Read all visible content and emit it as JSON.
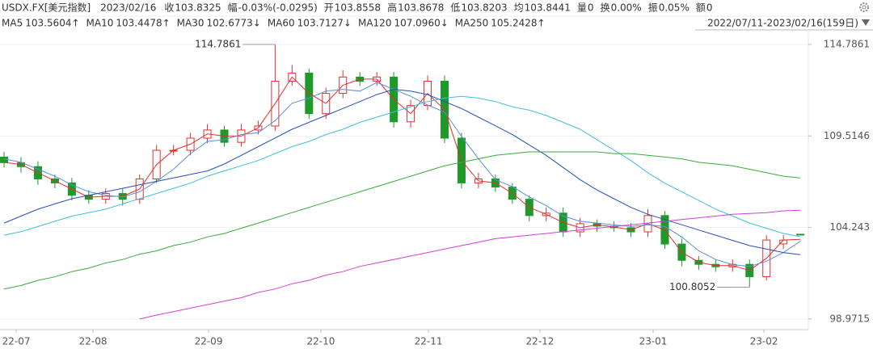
{
  "header": {
    "symbol": "USDX.FX[美元指数]",
    "date": "2023/02/16",
    "quote": [
      {
        "label": "收",
        "value": "103.8325"
      },
      {
        "label": "幅",
        "value": "-0.03%(-0.0295)"
      },
      {
        "label": "开",
        "value": "103.8558"
      },
      {
        "label": "高",
        "value": "103.8678"
      },
      {
        "label": "低",
        "value": "103.8203"
      },
      {
        "label": "均",
        "value": "103.8441"
      },
      {
        "label": "量",
        "value": "0"
      },
      {
        "label": "换",
        "value": "0.00%"
      },
      {
        "label": "振",
        "value": "0.05%"
      },
      {
        "label": "额",
        "value": "0"
      }
    ],
    "range": "2022/07/11-2023/02/16(159日)"
  },
  "chart_data": {
    "type": "candlestick",
    "up_color": "#e2302f",
    "down_color": "#1f9a2a",
    "xlim": [
      -0.24,
      47.47
    ],
    "ylim": [
      98.36,
      115.58
    ],
    "yticks": [
      114.7861,
      109.5146,
      104.243,
      98.9715
    ],
    "grid": true,
    "xticks": [
      {
        "value": 0.72,
        "label": "22-07"
      },
      {
        "value": 5.25,
        "label": "22-08"
      },
      {
        "value": 12.07,
        "label": "22-09"
      },
      {
        "value": 18.7,
        "label": "22-10"
      },
      {
        "value": 25.05,
        "label": "22-11"
      },
      {
        "value": 31.63,
        "label": "22-12"
      },
      {
        "value": 38.31,
        "label": "23-01"
      },
      {
        "value": 44.85,
        "label": "23-02"
      }
    ],
    "open": [
      108.3,
      107.98,
      107.75,
      107.04,
      106.81,
      106.1,
      105.87,
      106.2,
      105.87,
      107.04,
      108.69,
      108.69,
      109.39,
      109.86,
      109.15,
      109.86,
      110.09,
      112.67,
      113.14,
      110.8,
      111.97,
      112.91,
      112.67,
      112.91,
      110.33,
      111.27,
      112.67,
      109.39,
      106.81,
      107.04,
      106.57,
      105.87,
      104.93,
      105.07,
      103.99,
      104.46,
      104.32,
      104.23,
      103.99,
      104.93,
      103.29,
      102.35,
      102.12,
      101.98,
      102.12,
      101.41,
      103.3,
      103.8558
    ],
    "high": [
      108.6,
      108.3,
      108.05,
      107.3,
      107.1,
      106.4,
      106.5,
      106.5,
      107.3,
      109.0,
      109.0,
      109.7,
      110.2,
      110.1,
      110.2,
      110.4,
      114.7861,
      113.6,
      113.4,
      112.3,
      113.3,
      113.2,
      113.2,
      113.2,
      111.6,
      113.0,
      113.0,
      109.7,
      107.4,
      107.3,
      106.8,
      106.1,
      105.4,
      105.4,
      104.8,
      104.7,
      104.6,
      104.5,
      105.3,
      105.2,
      103.6,
      102.6,
      102.4,
      102.4,
      102.4,
      103.8,
      103.8,
      103.8678
    ],
    "low": [
      107.7,
      107.4,
      106.7,
      106.5,
      105.8,
      105.6,
      105.6,
      105.5,
      105.6,
      106.8,
      108.4,
      108.4,
      109.1,
      108.9,
      108.9,
      109.6,
      109.8,
      112.4,
      110.5,
      110.5,
      111.7,
      112.4,
      112.4,
      110.0,
      110.0,
      111.0,
      109.1,
      106.5,
      106.5,
      106.3,
      105.6,
      104.6,
      104.6,
      103.7,
      103.7,
      104.0,
      104.0,
      103.7,
      103.7,
      103.0,
      102.0,
      101.8,
      101.7,
      101.7,
      100.8052,
      101.2,
      103.0,
      103.8203
    ],
    "close": [
      107.98,
      107.75,
      107.04,
      106.81,
      106.1,
      105.87,
      106.2,
      105.87,
      107.04,
      108.69,
      108.69,
      109.39,
      109.86,
      109.15,
      109.86,
      110.09,
      112.67,
      113.14,
      110.8,
      111.97,
      112.91,
      112.67,
      112.91,
      110.33,
      111.27,
      112.67,
      109.39,
      106.81,
      107.04,
      106.57,
      105.87,
      104.93,
      105.07,
      103.99,
      104.46,
      104.32,
      104.23,
      103.99,
      104.93,
      103.29,
      102.35,
      102.12,
      101.98,
      102.12,
      101.41,
      103.52,
      103.52,
      103.8325
    ],
    "annotations": [
      {
        "text": "114.7861",
        "index": 16,
        "value": 114.7861,
        "color": "#e2302f"
      },
      {
        "text": "100.8052",
        "index": 44,
        "value": 100.8052,
        "color": "#1f9a2a"
      }
    ],
    "series": [
      {
        "name": "MA5",
        "label": "103.5604↑",
        "color": "#e2302f",
        "values": [
          108.0,
          107.87,
          107.4,
          106.93,
          106.46,
          105.99,
          106.04,
          106.04,
          106.46,
          107.87,
          108.69,
          109.04,
          109.63,
          109.51,
          109.51,
          109.98,
          111.38,
          112.91,
          111.97,
          111.39,
          112.44,
          112.79,
          112.79,
          111.62,
          110.8,
          111.97,
          111.03,
          108.1,
          106.93,
          106.81,
          106.22,
          105.4,
          105.0,
          104.53,
          104.23,
          104.39,
          104.28,
          104.11,
          104.46,
          104.11,
          102.82,
          102.24,
          102.05,
          102.05,
          101.77,
          102.47,
          103.52,
          103.56
        ]
      },
      {
        "name": "MA10",
        "label": "103.4478↑",
        "color": "#5a8fd8",
        "values": [
          108.2,
          108.0,
          107.6,
          107.2,
          106.7,
          106.3,
          106.1,
          106.0,
          106.3,
          106.9,
          107.6,
          108.5,
          109.2,
          109.3,
          109.6,
          109.7,
          110.4,
          111.4,
          111.7,
          112.1,
          112.2,
          112.1,
          112.6,
          112.2,
          111.8,
          111.3,
          110.9,
          109.5,
          108.2,
          107.0,
          106.6,
          106.0,
          105.5,
          104.9,
          104.6,
          104.5,
          104.4,
          104.3,
          104.4,
          104.3,
          103.7,
          102.9,
          102.4,
          102.1,
          102.0,
          102.3,
          102.8,
          103.45
        ]
      },
      {
        "name": "MA30",
        "label": "102.6773↓",
        "color": "#2550b8",
        "values": [
          104.5,
          104.9,
          105.3,
          105.6,
          105.9,
          106.1,
          106.3,
          106.5,
          106.7,
          106.9,
          107.1,
          107.3,
          107.5,
          107.9,
          108.4,
          108.9,
          109.4,
          109.9,
          110.3,
          110.7,
          111.1,
          111.5,
          111.9,
          112.2,
          112.1,
          111.9,
          111.5,
          111.1,
          110.6,
          110.1,
          109.6,
          109.0,
          108.4,
          107.7,
          107.0,
          106.4,
          105.9,
          105.4,
          105.0,
          104.7,
          104.4,
          104.1,
          103.8,
          103.5,
          103.2,
          103.0,
          102.8,
          102.68
        ]
      },
      {
        "name": "MA60",
        "label": "103.7127↓",
        "color": "#3fc0dc",
        "values": [
          103.8,
          104.0,
          104.3,
          104.6,
          104.9,
          105.1,
          105.3,
          105.6,
          105.9,
          106.2,
          106.5,
          106.8,
          107.2,
          107.5,
          107.8,
          108.1,
          108.5,
          108.9,
          109.2,
          109.6,
          109.9,
          110.3,
          110.6,
          110.9,
          111.2,
          111.5,
          111.7,
          111.8,
          111.7,
          111.5,
          111.2,
          111.0,
          110.7,
          110.3,
          109.9,
          109.3,
          108.7,
          108.1,
          107.4,
          106.8,
          106.3,
          105.8,
          105.3,
          104.9,
          104.5,
          104.2,
          103.9,
          103.71
        ]
      },
      {
        "name": "MA120",
        "label": "107.0960↓",
        "color": "#3aab3a",
        "values": [
          100.7,
          100.9,
          101.2,
          101.4,
          101.7,
          101.9,
          102.2,
          102.4,
          102.7,
          102.9,
          103.2,
          103.4,
          103.7,
          103.9,
          104.2,
          104.5,
          104.8,
          105.1,
          105.4,
          105.7,
          106.0,
          106.3,
          106.6,
          106.9,
          107.2,
          107.5,
          107.8,
          108.0,
          108.2,
          108.4,
          108.5,
          108.6,
          108.6,
          108.6,
          108.6,
          108.6,
          108.5,
          108.5,
          108.4,
          108.3,
          108.2,
          108.0,
          107.9,
          107.8,
          107.6,
          107.4,
          107.2,
          107.1
        ]
      },
      {
        "name": "MA250",
        "label": "105.2428↑",
        "color": "#d23fd6",
        "values": [
          null,
          null,
          null,
          null,
          null,
          null,
          null,
          null,
          98.97,
          99.2,
          99.4,
          99.6,
          99.8,
          100.0,
          100.2,
          100.5,
          100.7,
          101.0,
          101.2,
          101.5,
          101.7,
          102.0,
          102.2,
          102.4,
          102.6,
          102.8,
          103.0,
          103.2,
          103.4,
          103.6,
          103.7,
          103.8,
          103.9,
          104.0,
          104.1,
          104.2,
          104.3,
          104.4,
          104.5,
          104.6,
          104.7,
          104.8,
          104.9,
          105.0,
          105.05,
          105.1,
          105.2,
          105.24
        ]
      }
    ]
  }
}
